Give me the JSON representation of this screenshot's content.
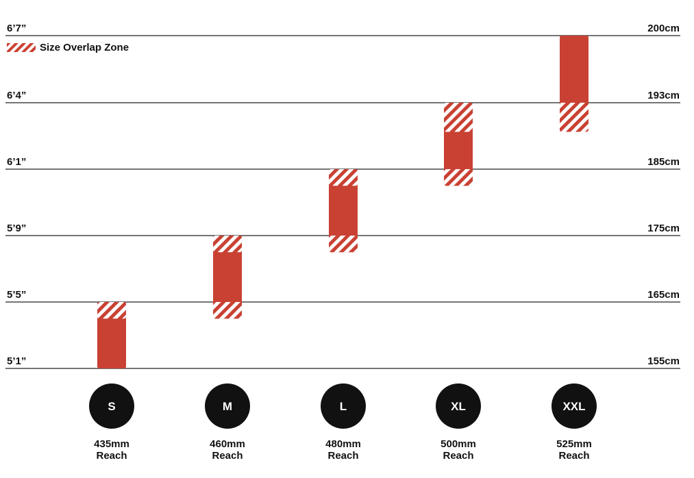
{
  "colors": {
    "bar": "#c94133",
    "line": "#222222",
    "circle": "#111111",
    "text": "#111111"
  },
  "legend": {
    "label": "Size Overlap Zone"
  },
  "chart_data": {
    "type": "bar",
    "title": "",
    "xlabel": "",
    "ylabel": "",
    "ylim": [
      155,
      200
    ],
    "grid": true,
    "legend_position": "top-left",
    "y_ticks_left": [
      {
        "value": 155,
        "label": "5’1”"
      },
      {
        "value": 165,
        "label": "5’5”"
      },
      {
        "value": 175,
        "label": "5’9”"
      },
      {
        "value": 185,
        "label": "6’1”"
      },
      {
        "value": 193,
        "label": "6’4”"
      },
      {
        "value": 200,
        "label": "6’7”"
      }
    ],
    "y_ticks_right": [
      {
        "value": 155,
        "label": "155cm"
      },
      {
        "value": 165,
        "label": "165cm"
      },
      {
        "value": 175,
        "label": "175cm"
      },
      {
        "value": 185,
        "label": "185cm"
      },
      {
        "value": 193,
        "label": "193cm"
      },
      {
        "value": 200,
        "label": "200cm"
      }
    ],
    "categories": [
      "S",
      "M",
      "L",
      "XL",
      "XXL"
    ],
    "reach": [
      "435mm",
      "460mm",
      "480mm",
      "500mm",
      "525mm"
    ],
    "reach_label": "Reach",
    "ranges": [
      {
        "size": "S",
        "low": 155,
        "high": 165,
        "overlap_low": null,
        "overlap_high": [
          162.5,
          165
        ]
      },
      {
        "size": "M",
        "low": 162.5,
        "high": 175,
        "overlap_low": [
          162.5,
          165
        ],
        "overlap_high": [
          172.5,
          175
        ]
      },
      {
        "size": "L",
        "low": 172.5,
        "high": 185,
        "overlap_low": [
          172.5,
          175
        ],
        "overlap_high": [
          182.5,
          185
        ]
      },
      {
        "size": "XL",
        "low": 182.5,
        "high": 193,
        "overlap_low": [
          182.5,
          185
        ],
        "overlap_high": [
          189.5,
          193
        ]
      },
      {
        "size": "XXL",
        "low": 189.5,
        "high": 200,
        "overlap_low": [
          189.5,
          193
        ],
        "overlap_high": null
      }
    ]
  }
}
